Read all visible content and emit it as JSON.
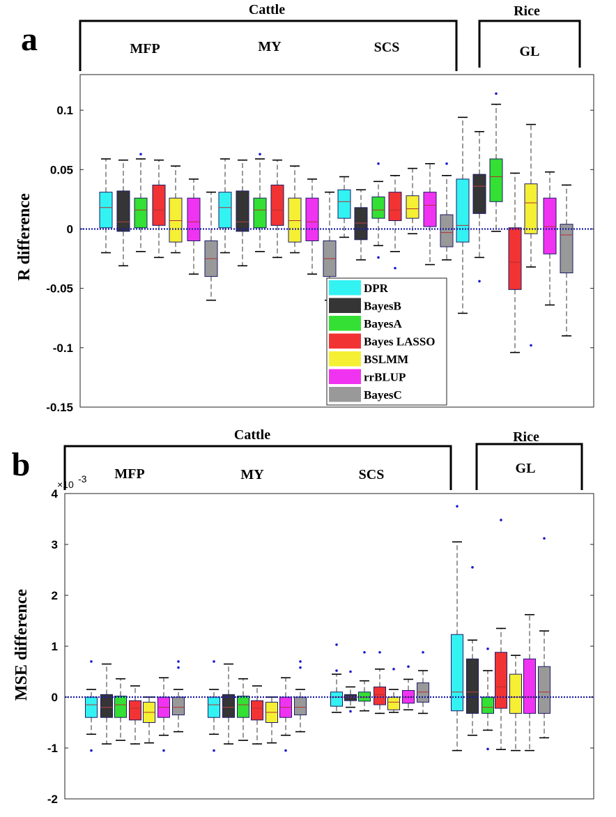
{
  "colors": {
    "DPR": "#33f2f2",
    "BayesB": "#353535",
    "BayesA": "#33e033",
    "Bayes LASSO": "#f23333",
    "BSLMM": "#f5f033",
    "rrBLUP": "#f033f0",
    "BayesC": "#999999",
    "whisker": "#333333",
    "outlier": "#1a1acc",
    "zero_line": "#1a1aa8"
  },
  "chart_data": [
    {
      "type": "box",
      "panel_label": "a",
      "ylabel": "R difference",
      "ylim": [
        -0.15,
        0.13
      ],
      "yticks": [
        -0.15,
        -0.1,
        -0.05,
        0,
        0.05,
        0.1
      ],
      "ytick_labels": [
        "-0.15",
        "-0.1",
        "-0.05",
        "0",
        "0.05",
        "0.1"
      ],
      "exponent_label": "",
      "reference_line": 0,
      "legend_location": "center-bottom",
      "groups": [
        {
          "header": "Cattle",
          "traits": [
            "MFP",
            "MY",
            "SCS"
          ]
        },
        {
          "header": "Rice",
          "traits": [
            "GL"
          ]
        }
      ],
      "traits": [
        {
          "name": "MFP",
          "boxes": [
            {
              "method": "DPR",
              "whisker_low": -0.02,
              "q1": 0.001,
              "median": 0.018,
              "q3": 0.031,
              "whisker_high": 0.059,
              "outliers": []
            },
            {
              "method": "BayesB",
              "whisker_low": -0.031,
              "q1": -0.002,
              "median": 0.006,
              "q3": 0.032,
              "whisker_high": 0.058,
              "outliers": []
            },
            {
              "method": "BayesA",
              "whisker_low": -0.019,
              "q1": 0.001,
              "median": 0.016,
              "q3": 0.026,
              "whisker_high": 0.059,
              "outliers": [
                0.063
              ]
            },
            {
              "method": "Bayes LASSO",
              "whisker_low": -0.024,
              "q1": 0.003,
              "median": 0.016,
              "q3": 0.037,
              "whisker_high": 0.058,
              "outliers": []
            },
            {
              "method": "BSLMM",
              "whisker_low": -0.02,
              "q1": -0.011,
              "median": 0.007,
              "q3": 0.026,
              "whisker_high": 0.053,
              "outliers": []
            },
            {
              "method": "rrBLUP",
              "whisker_low": -0.038,
              "q1": -0.01,
              "median": 0.006,
              "q3": 0.026,
              "whisker_high": 0.042,
              "outliers": []
            },
            {
              "method": "BayesC",
              "whisker_low": -0.06,
              "q1": -0.04,
              "median": -0.025,
              "q3": -0.01,
              "whisker_high": 0.031,
              "outliers": []
            }
          ]
        },
        {
          "name": "MY",
          "boxes": [
            {
              "method": "DPR",
              "whisker_low": -0.02,
              "q1": 0.001,
              "median": 0.018,
              "q3": 0.031,
              "whisker_high": 0.059,
              "outliers": []
            },
            {
              "method": "BayesB",
              "whisker_low": -0.031,
              "q1": -0.002,
              "median": 0.006,
              "q3": 0.032,
              "whisker_high": 0.058,
              "outliers": []
            },
            {
              "method": "BayesA",
              "whisker_low": -0.019,
              "q1": 0.001,
              "median": 0.016,
              "q3": 0.026,
              "whisker_high": 0.059,
              "outliers": [
                0.063
              ]
            },
            {
              "method": "Bayes LASSO",
              "whisker_low": -0.024,
              "q1": 0.003,
              "median": 0.016,
              "q3": 0.037,
              "whisker_high": 0.058,
              "outliers": []
            },
            {
              "method": "BSLMM",
              "whisker_low": -0.02,
              "q1": -0.011,
              "median": 0.007,
              "q3": 0.026,
              "whisker_high": 0.053,
              "outliers": []
            },
            {
              "method": "rrBLUP",
              "whisker_low": -0.038,
              "q1": -0.01,
              "median": 0.006,
              "q3": 0.026,
              "whisker_high": 0.042,
              "outliers": []
            },
            {
              "method": "BayesC",
              "whisker_low": -0.06,
              "q1": -0.04,
              "median": -0.025,
              "q3": -0.01,
              "whisker_high": 0.031,
              "outliers": []
            }
          ]
        },
        {
          "name": "SCS",
          "boxes": [
            {
              "method": "DPR",
              "whisker_low": -0.007,
              "q1": 0.009,
              "median": 0.023,
              "q3": 0.033,
              "whisker_high": 0.044,
              "outliers": []
            },
            {
              "method": "BayesB",
              "whisker_low": -0.026,
              "q1": -0.009,
              "median": 0.005,
              "q3": 0.018,
              "whisker_high": 0.033,
              "outliers": []
            },
            {
              "method": "BayesA",
              "whisker_low": -0.014,
              "q1": 0.009,
              "median": 0.016,
              "q3": 0.027,
              "whisker_high": 0.04,
              "outliers": [
                0.055,
                -0.024
              ]
            },
            {
              "method": "Bayes LASSO",
              "whisker_low": -0.019,
              "q1": 0.007,
              "median": 0.016,
              "q3": 0.031,
              "whisker_high": 0.045,
              "outliers": [
                -0.033
              ]
            },
            {
              "method": "BSLMM",
              "whisker_low": -0.004,
              "q1": 0.009,
              "median": 0.017,
              "q3": 0.028,
              "whisker_high": 0.051,
              "outliers": []
            },
            {
              "method": "rrBLUP",
              "whisker_low": -0.03,
              "q1": 0.002,
              "median": 0.02,
              "q3": 0.031,
              "whisker_high": 0.055,
              "outliers": []
            },
            {
              "method": "BayesC",
              "whisker_low": -0.026,
              "q1": -0.015,
              "median": -0.003,
              "q3": 0.012,
              "whisker_high": 0.045,
              "outliers": [
                0.055
              ]
            }
          ]
        },
        {
          "name": "GL",
          "boxes": [
            {
              "method": "DPR",
              "whisker_low": -0.071,
              "q1": -0.011,
              "median": 0.003,
              "q3": 0.042,
              "whisker_high": 0.094,
              "outliers": []
            },
            {
              "method": "BayesB",
              "whisker_low": -0.024,
              "q1": 0.013,
              "median": 0.036,
              "q3": 0.046,
              "whisker_high": 0.082,
              "outliers": [
                -0.044
              ]
            },
            {
              "method": "BayesA",
              "whisker_low": -0.002,
              "q1": 0.023,
              "median": 0.044,
              "q3": 0.059,
              "whisker_high": 0.105,
              "outliers": [
                0.114
              ]
            },
            {
              "method": "Bayes LASSO",
              "whisker_low": -0.104,
              "q1": -0.051,
              "median": -0.028,
              "q3": 0.001,
              "whisker_high": 0.047,
              "outliers": []
            },
            {
              "method": "BSLMM",
              "whisker_low": -0.032,
              "q1": -0.004,
              "median": 0.022,
              "q3": 0.038,
              "whisker_high": 0.088,
              "outliers": [
                -0.098
              ]
            },
            {
              "method": "rrBLUP",
              "whisker_low": -0.064,
              "q1": -0.021,
              "median": 0.002,
              "q3": 0.026,
              "whisker_high": 0.048,
              "outliers": []
            },
            {
              "method": "BayesC",
              "whisker_low": -0.09,
              "q1": -0.037,
              "median": -0.005,
              "q3": 0.004,
              "whisker_high": 0.037,
              "outliers": []
            }
          ]
        }
      ],
      "legend": [
        "DPR",
        "BayesB",
        "BayesA",
        "Bayes LASSO",
        "BSLMM",
        "rrBLUP",
        "BayesC"
      ]
    },
    {
      "type": "box",
      "panel_label": "b",
      "ylabel": "MSE difference",
      "ylim": [
        -2,
        4
      ],
      "yticks": [
        -2,
        -1,
        0,
        1,
        2,
        3,
        4
      ],
      "ytick_labels": [
        "-2",
        "-1",
        "0",
        "1",
        "2",
        "3",
        "4"
      ],
      "exponent_label": "×10",
      "exponent_power": "-3",
      "reference_line": 0,
      "groups": [
        {
          "header": "Cattle",
          "traits": [
            "MFP",
            "MY",
            "SCS"
          ]
        },
        {
          "header": "Rice",
          "traits": [
            "GL"
          ]
        }
      ],
      "traits": [
        {
          "name": "MFP",
          "boxes": [
            {
              "method": "DPR",
              "whisker_low": -0.73,
              "q1": -0.4,
              "median": -0.15,
              "q3": 0.0,
              "whisker_high": 0.15,
              "outliers": [
                0.7,
                -1.05
              ]
            },
            {
              "method": "BayesB",
              "whisker_low": -0.92,
              "q1": -0.4,
              "median": -0.2,
              "q3": 0.05,
              "whisker_high": 0.65,
              "outliers": []
            },
            {
              "method": "BayesA",
              "whisker_low": -0.85,
              "q1": -0.4,
              "median": -0.15,
              "q3": 0.02,
              "whisker_high": 0.36,
              "outliers": []
            },
            {
              "method": "Bayes LASSO",
              "whisker_low": -0.92,
              "q1": -0.45,
              "median": -0.22,
              "q3": -0.07,
              "whisker_high": 0.22,
              "outliers": []
            },
            {
              "method": "BSLMM",
              "whisker_low": -0.9,
              "q1": -0.5,
              "median": -0.3,
              "q3": -0.1,
              "whisker_high": 0.0,
              "outliers": []
            },
            {
              "method": "rrBLUP",
              "whisker_low": -0.75,
              "q1": -0.4,
              "median": -0.2,
              "q3": 0.0,
              "whisker_high": 0.38,
              "outliers": [
                -1.05
              ]
            },
            {
              "method": "BayesC",
              "whisker_low": -0.68,
              "q1": -0.35,
              "median": -0.2,
              "q3": 0.0,
              "whisker_high": 0.15,
              "outliers": [
                0.7,
                0.58
              ]
            }
          ]
        },
        {
          "name": "MY",
          "boxes": [
            {
              "method": "DPR",
              "whisker_low": -0.73,
              "q1": -0.4,
              "median": -0.15,
              "q3": 0.0,
              "whisker_high": 0.15,
              "outliers": [
                0.7,
                -1.05
              ]
            },
            {
              "method": "BayesB",
              "whisker_low": -0.92,
              "q1": -0.4,
              "median": -0.2,
              "q3": 0.05,
              "whisker_high": 0.65,
              "outliers": []
            },
            {
              "method": "BayesA",
              "whisker_low": -0.85,
              "q1": -0.4,
              "median": -0.15,
              "q3": 0.02,
              "whisker_high": 0.36,
              "outliers": []
            },
            {
              "method": "Bayes LASSO",
              "whisker_low": -0.92,
              "q1": -0.45,
              "median": -0.22,
              "q3": -0.07,
              "whisker_high": 0.22,
              "outliers": []
            },
            {
              "method": "BSLMM",
              "whisker_low": -0.9,
              "q1": -0.5,
              "median": -0.3,
              "q3": -0.1,
              "whisker_high": 0.0,
              "outliers": []
            },
            {
              "method": "rrBLUP",
              "whisker_low": -0.75,
              "q1": -0.4,
              "median": -0.2,
              "q3": 0.0,
              "whisker_high": 0.38,
              "outliers": [
                -1.05
              ]
            },
            {
              "method": "BayesC",
              "whisker_low": -0.68,
              "q1": -0.35,
              "median": -0.2,
              "q3": 0.0,
              "whisker_high": 0.15,
              "outliers": [
                0.7,
                0.58
              ]
            }
          ]
        },
        {
          "name": "SCS",
          "boxes": [
            {
              "method": "DPR",
              "whisker_low": -0.3,
              "q1": -0.18,
              "median": 0.0,
              "q3": 0.1,
              "whisker_high": 0.45,
              "outliers": [
                1.03,
                0.52
              ]
            },
            {
              "method": "BayesB",
              "whisker_low": -0.2,
              "q1": -0.07,
              "median": 0.0,
              "q3": 0.05,
              "whisker_high": 0.2,
              "outliers": [
                0.5,
                -0.28
              ]
            },
            {
              "method": "BayesA",
              "whisker_low": -0.27,
              "q1": -0.08,
              "median": 0.0,
              "q3": 0.1,
              "whisker_high": 0.32,
              "outliers": [
                0.88
              ]
            },
            {
              "method": "Bayes LASSO",
              "whisker_low": -0.32,
              "q1": -0.15,
              "median": 0.05,
              "q3": 0.2,
              "whisker_high": 0.55,
              "outliers": [
                0.88
              ]
            },
            {
              "method": "BSLMM",
              "whisker_low": -0.3,
              "q1": -0.25,
              "median": -0.1,
              "q3": 0.0,
              "whisker_high": 0.15,
              "outliers": [
                0.55
              ]
            },
            {
              "method": "rrBLUP",
              "whisker_low": -0.25,
              "q1": -0.12,
              "median": 0.0,
              "q3": 0.13,
              "whisker_high": 0.35,
              "outliers": [
                0.6
              ]
            },
            {
              "method": "BayesC",
              "whisker_low": -0.32,
              "q1": -0.1,
              "median": 0.1,
              "q3": 0.28,
              "whisker_high": 0.52,
              "outliers": [
                0.88
              ]
            }
          ]
        },
        {
          "name": "GL",
          "boxes": [
            {
              "method": "DPR",
              "whisker_low": -1.05,
              "q1": -0.27,
              "median": 0.1,
              "q3": 1.23,
              "whisker_high": 3.05,
              "outliers": [
                3.75
              ]
            },
            {
              "method": "BayesB",
              "whisker_low": -0.75,
              "q1": -0.32,
              "median": 0.1,
              "q3": 0.75,
              "whisker_high": 1.12,
              "outliers": [
                2.55
              ]
            },
            {
              "method": "BayesA",
              "whisker_low": -0.65,
              "q1": -0.32,
              "median": -0.2,
              "q3": 0.0,
              "whisker_high": 0.52,
              "outliers": [
                0.95,
                -1.02
              ]
            },
            {
              "method": "Bayes LASSO",
              "whisker_low": -1.03,
              "q1": -0.22,
              "median": 0.2,
              "q3": 0.88,
              "whisker_high": 1.35,
              "outliers": [
                3.48
              ]
            },
            {
              "method": "BSLMM",
              "whisker_low": -1.05,
              "q1": -0.32,
              "median": 0.0,
              "q3": 0.45,
              "whisker_high": 0.82,
              "outliers": []
            },
            {
              "method": "rrBLUP",
              "whisker_low": -1.05,
              "q1": -0.32,
              "median": 0.0,
              "q3": 0.75,
              "whisker_high": 1.62,
              "outliers": []
            },
            {
              "method": "BayesC",
              "whisker_low": -0.8,
              "q1": -0.32,
              "median": 0.1,
              "q3": 0.6,
              "whisker_high": 1.3,
              "outliers": [
                3.12
              ]
            }
          ]
        }
      ]
    }
  ]
}
